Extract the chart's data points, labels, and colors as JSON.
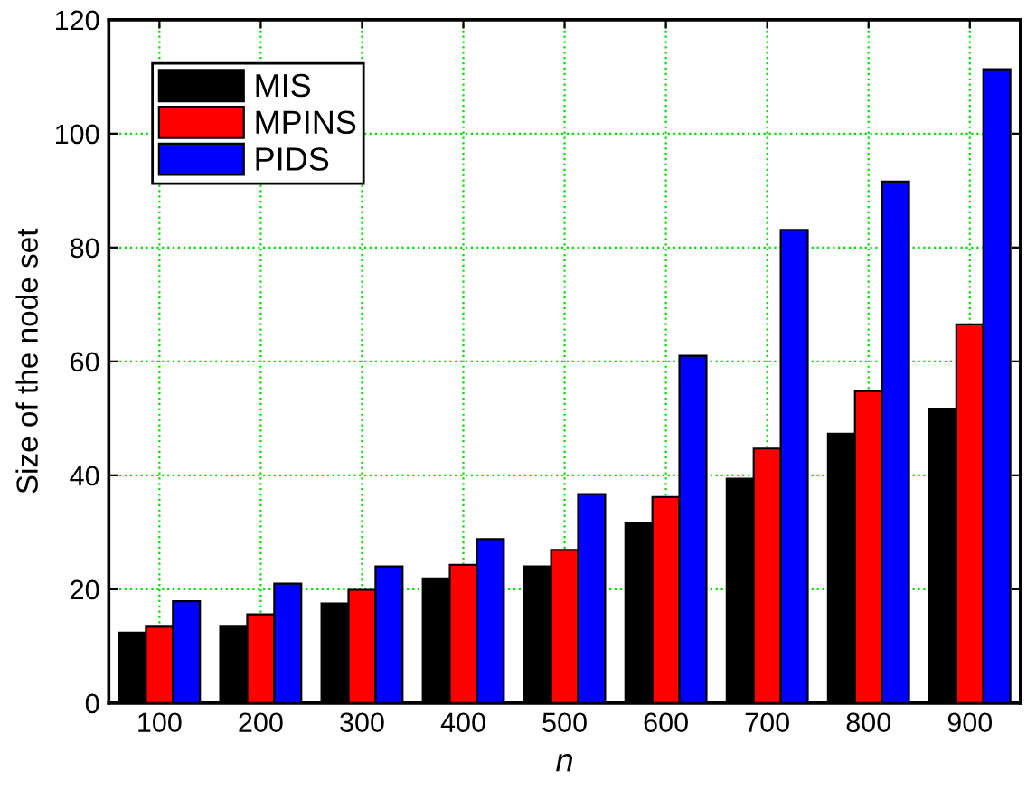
{
  "chart_data": {
    "type": "bar",
    "xlabel": "n",
    "ylabel": "Size of the node set",
    "categories": [
      "100",
      "200",
      "300",
      "400",
      "500",
      "600",
      "700",
      "800",
      "900"
    ],
    "series": [
      {
        "name": "MIS",
        "color": "#000000",
        "values": [
          12.4,
          13.4,
          17.5,
          21.9,
          24.0,
          31.7,
          39.4,
          47.3,
          51.7
        ]
      },
      {
        "name": "MPINS",
        "color": "#ff0000",
        "values": [
          13.4,
          15.6,
          19.9,
          24.3,
          26.9,
          36.2,
          44.7,
          54.8,
          66.5
        ]
      },
      {
        "name": "PIDS",
        "color": "#0000ff",
        "values": [
          17.9,
          21.0,
          24.0,
          28.8,
          36.7,
          61.0,
          83.1,
          91.6,
          111.3
        ]
      }
    ],
    "ylim": [
      0,
      120
    ],
    "yticks": [
      0,
      20,
      40,
      60,
      80,
      100,
      120
    ],
    "grid": true,
    "legend": "top left"
  }
}
